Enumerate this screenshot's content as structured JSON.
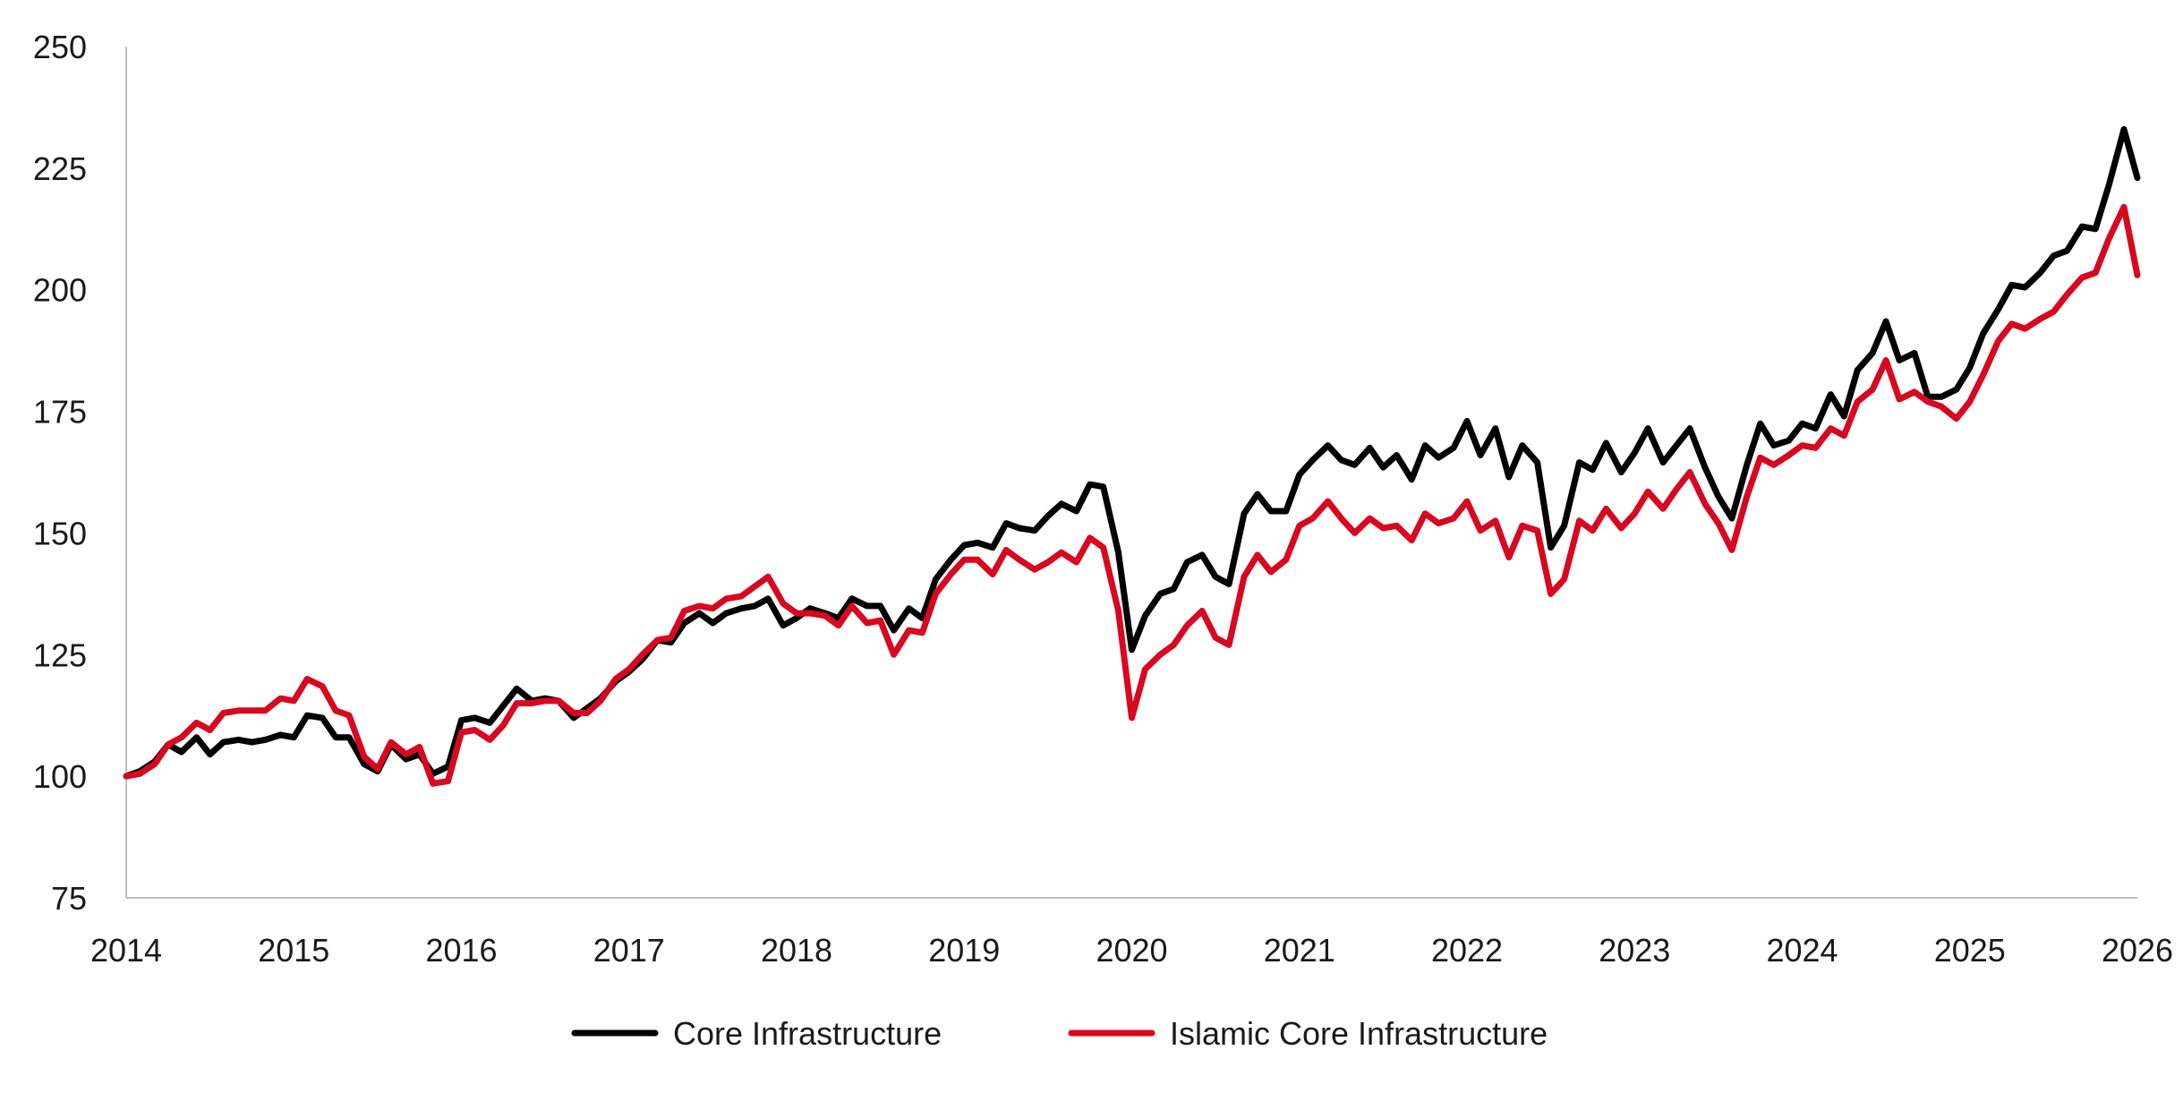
{
  "chart_data": {
    "type": "line",
    "title": "",
    "xlabel": "",
    "ylabel": "",
    "xlim": [
      2014,
      2026
    ],
    "ylim": [
      75,
      250
    ],
    "y_ticks": [
      "75",
      "100",
      "125",
      "150",
      "175",
      "200",
      "225",
      "250"
    ],
    "x_ticks": [
      "2014",
      "2015",
      "2016",
      "2017",
      "2018",
      "2019",
      "2020",
      "2021",
      "2022",
      "2023",
      "2024",
      "2025",
      "2026"
    ],
    "grid": false,
    "legend_position": "bottom",
    "series": [
      {
        "name": "Core Infrastructure",
        "color": "#000000",
        "points": [
          [
            2014.0,
            100
          ],
          [
            2014.08,
            101
          ],
          [
            2014.17,
            103
          ],
          [
            2014.25,
            106.5
          ],
          [
            2014.33,
            105
          ],
          [
            2014.42,
            108
          ],
          [
            2014.5,
            104.5
          ],
          [
            2014.58,
            107
          ],
          [
            2014.67,
            107.5
          ],
          [
            2014.75,
            107
          ],
          [
            2014.83,
            107.5
          ],
          [
            2014.92,
            108.5
          ],
          [
            2015.0,
            108
          ],
          [
            2015.08,
            112.5
          ],
          [
            2015.17,
            112
          ],
          [
            2015.25,
            108
          ],
          [
            2015.33,
            108
          ],
          [
            2015.42,
            102.5
          ],
          [
            2015.5,
            101
          ],
          [
            2015.58,
            106.5
          ],
          [
            2015.67,
            103.5
          ],
          [
            2015.75,
            104.5
          ],
          [
            2015.83,
            100.5
          ],
          [
            2015.92,
            102
          ],
          [
            2016.0,
            111.5
          ],
          [
            2016.08,
            112
          ],
          [
            2016.17,
            111
          ],
          [
            2016.25,
            114.5
          ],
          [
            2016.33,
            118
          ],
          [
            2016.42,
            115.5
          ],
          [
            2016.5,
            116
          ],
          [
            2016.58,
            115.5
          ],
          [
            2016.67,
            112
          ],
          [
            2016.75,
            114
          ],
          [
            2016.83,
            116
          ],
          [
            2016.92,
            119.5
          ],
          [
            2017.0,
            121.5
          ],
          [
            2017.08,
            124
          ],
          [
            2017.17,
            128
          ],
          [
            2017.25,
            127.5
          ],
          [
            2017.33,
            131.5
          ],
          [
            2017.42,
            133.5
          ],
          [
            2017.5,
            131.5
          ],
          [
            2017.58,
            133.5
          ],
          [
            2017.67,
            134.5
          ],
          [
            2017.75,
            135
          ],
          [
            2017.83,
            136.5
          ],
          [
            2017.92,
            131
          ],
          [
            2018.0,
            132.5
          ],
          [
            2018.08,
            134.5
          ],
          [
            2018.17,
            133.5
          ],
          [
            2018.25,
            132.5
          ],
          [
            2018.33,
            136.5
          ],
          [
            2018.42,
            135
          ],
          [
            2018.5,
            135
          ],
          [
            2018.58,
            130
          ],
          [
            2018.67,
            134.5
          ],
          [
            2018.75,
            132.5
          ],
          [
            2018.83,
            140.5
          ],
          [
            2018.92,
            144.5
          ],
          [
            2019.0,
            147.5
          ],
          [
            2019.08,
            148
          ],
          [
            2019.17,
            147
          ],
          [
            2019.25,
            152
          ],
          [
            2019.33,
            151
          ],
          [
            2019.42,
            150.5
          ],
          [
            2019.5,
            153.5
          ],
          [
            2019.58,
            156
          ],
          [
            2019.67,
            154.5
          ],
          [
            2019.75,
            160
          ],
          [
            2019.83,
            159.5
          ],
          [
            2019.92,
            146
          ],
          [
            2020.0,
            126
          ],
          [
            2020.08,
            133
          ],
          [
            2020.17,
            137.5
          ],
          [
            2020.25,
            138.5
          ],
          [
            2020.33,
            144
          ],
          [
            2020.42,
            145.5
          ],
          [
            2020.5,
            141
          ],
          [
            2020.58,
            139.5
          ],
          [
            2020.67,
            154
          ],
          [
            2020.75,
            158
          ],
          [
            2020.83,
            154.5
          ],
          [
            2020.92,
            154.5
          ],
          [
            2021.0,
            162
          ],
          [
            2021.08,
            165
          ],
          [
            2021.17,
            168
          ],
          [
            2021.25,
            165
          ],
          [
            2021.33,
            164
          ],
          [
            2021.42,
            167.5
          ],
          [
            2021.5,
            163.5
          ],
          [
            2021.58,
            166
          ],
          [
            2021.67,
            161
          ],
          [
            2021.75,
            168
          ],
          [
            2021.83,
            165.5
          ],
          [
            2021.92,
            167.5
          ],
          [
            2022.0,
            173
          ],
          [
            2022.08,
            166
          ],
          [
            2022.17,
            171.5
          ],
          [
            2022.25,
            161.5
          ],
          [
            2022.33,
            168
          ],
          [
            2022.42,
            164.5
          ],
          [
            2022.5,
            147
          ],
          [
            2022.58,
            151.5
          ],
          [
            2022.67,
            164.5
          ],
          [
            2022.75,
            163
          ],
          [
            2022.83,
            168.5
          ],
          [
            2022.92,
            162.5
          ],
          [
            2023.0,
            166.5
          ],
          [
            2023.08,
            171.5
          ],
          [
            2023.17,
            164.5
          ],
          [
            2023.25,
            168
          ],
          [
            2023.33,
            171.5
          ],
          [
            2023.42,
            163.5
          ],
          [
            2023.5,
            157.5
          ],
          [
            2023.58,
            153
          ],
          [
            2023.67,
            164
          ],
          [
            2023.75,
            172.5
          ],
          [
            2023.83,
            168
          ],
          [
            2023.92,
            169
          ],
          [
            2024.0,
            172.5
          ],
          [
            2024.08,
            171.5
          ],
          [
            2024.17,
            178.5
          ],
          [
            2024.25,
            174
          ],
          [
            2024.33,
            183.5
          ],
          [
            2024.42,
            187
          ],
          [
            2024.5,
            193.5
          ],
          [
            2024.58,
            185.5
          ],
          [
            2024.67,
            187
          ],
          [
            2024.75,
            178
          ],
          [
            2024.83,
            178
          ],
          [
            2024.92,
            179.5
          ],
          [
            2025.0,
            184
          ],
          [
            2025.08,
            191
          ],
          [
            2025.17,
            196
          ],
          [
            2025.25,
            201
          ],
          [
            2025.33,
            200.5
          ],
          [
            2025.42,
            203.5
          ],
          [
            2025.5,
            207
          ],
          [
            2025.58,
            208
          ],
          [
            2025.67,
            213
          ],
          [
            2025.75,
            212.5
          ],
          [
            2025.83,
            221.5
          ],
          [
            2025.92,
            233
          ],
          [
            2026.0,
            223
          ]
        ]
      },
      {
        "name": "Islamic Core Infrastructure",
        "color": "#d7081f",
        "points": [
          [
            2014.0,
            100
          ],
          [
            2014.08,
            100.5
          ],
          [
            2014.17,
            102.5
          ],
          [
            2014.25,
            106.5
          ],
          [
            2014.33,
            108
          ],
          [
            2014.42,
            111
          ],
          [
            2014.5,
            109.5
          ],
          [
            2014.58,
            113
          ],
          [
            2014.67,
            113.5
          ],
          [
            2014.75,
            113.5
          ],
          [
            2014.83,
            113.5
          ],
          [
            2014.92,
            116
          ],
          [
            2015.0,
            115.5
          ],
          [
            2015.08,
            120
          ],
          [
            2015.17,
            118.5
          ],
          [
            2015.25,
            113.5
          ],
          [
            2015.33,
            112.5
          ],
          [
            2015.42,
            104
          ],
          [
            2015.5,
            101.5
          ],
          [
            2015.58,
            107
          ],
          [
            2015.67,
            104.5
          ],
          [
            2015.75,
            106
          ],
          [
            2015.83,
            98.5
          ],
          [
            2015.92,
            99
          ],
          [
            2016.0,
            109
          ],
          [
            2016.08,
            109.5
          ],
          [
            2016.17,
            107.5
          ],
          [
            2016.25,
            110.5
          ],
          [
            2016.33,
            115
          ],
          [
            2016.42,
            115
          ],
          [
            2016.5,
            115.5
          ],
          [
            2016.58,
            115.5
          ],
          [
            2016.67,
            113
          ],
          [
            2016.75,
            113
          ],
          [
            2016.83,
            115.5
          ],
          [
            2016.92,
            120
          ],
          [
            2017.0,
            122
          ],
          [
            2017.08,
            125
          ],
          [
            2017.17,
            128
          ],
          [
            2017.25,
            128.5
          ],
          [
            2017.33,
            134
          ],
          [
            2017.42,
            135
          ],
          [
            2017.5,
            134.5
          ],
          [
            2017.58,
            136.5
          ],
          [
            2017.67,
            137
          ],
          [
            2017.75,
            139
          ],
          [
            2017.83,
            141
          ],
          [
            2017.92,
            135.5
          ],
          [
            2018.0,
            133.5
          ],
          [
            2018.08,
            133.5
          ],
          [
            2018.17,
            133
          ],
          [
            2018.25,
            131
          ],
          [
            2018.33,
            135
          ],
          [
            2018.42,
            131.5
          ],
          [
            2018.5,
            132
          ],
          [
            2018.58,
            125
          ],
          [
            2018.67,
            130
          ],
          [
            2018.75,
            129.5
          ],
          [
            2018.83,
            137.5
          ],
          [
            2018.92,
            141.5
          ],
          [
            2019.0,
            144.5
          ],
          [
            2019.08,
            144.5
          ],
          [
            2019.17,
            141.5
          ],
          [
            2019.25,
            146.5
          ],
          [
            2019.33,
            144.5
          ],
          [
            2019.42,
            142.5
          ],
          [
            2019.5,
            144
          ],
          [
            2019.58,
            146
          ],
          [
            2019.67,
            144
          ],
          [
            2019.75,
            149
          ],
          [
            2019.83,
            147
          ],
          [
            2019.92,
            134
          ],
          [
            2020.0,
            112
          ],
          [
            2020.08,
            122
          ],
          [
            2020.17,
            125
          ],
          [
            2020.25,
            127
          ],
          [
            2020.33,
            131
          ],
          [
            2020.42,
            134
          ],
          [
            2020.5,
            128.5
          ],
          [
            2020.58,
            127
          ],
          [
            2020.67,
            141
          ],
          [
            2020.75,
            145.5
          ],
          [
            2020.83,
            142
          ],
          [
            2020.92,
            144.5
          ],
          [
            2021.0,
            151.5
          ],
          [
            2021.08,
            153
          ],
          [
            2021.17,
            156.5
          ],
          [
            2021.25,
            153
          ],
          [
            2021.33,
            150
          ],
          [
            2021.42,
            153
          ],
          [
            2021.5,
            151
          ],
          [
            2021.58,
            151.5
          ],
          [
            2021.67,
            148.5
          ],
          [
            2021.75,
            154
          ],
          [
            2021.83,
            152
          ],
          [
            2021.92,
            153
          ],
          [
            2022.0,
            156.5
          ],
          [
            2022.08,
            150.5
          ],
          [
            2022.17,
            152.5
          ],
          [
            2022.25,
            145
          ],
          [
            2022.33,
            151.5
          ],
          [
            2022.42,
            150.5
          ],
          [
            2022.5,
            137.5
          ],
          [
            2022.58,
            140.5
          ],
          [
            2022.67,
            152.5
          ],
          [
            2022.75,
            150.5
          ],
          [
            2022.83,
            155
          ],
          [
            2022.92,
            151
          ],
          [
            2023.0,
            154
          ],
          [
            2023.08,
            158.5
          ],
          [
            2023.17,
            155
          ],
          [
            2023.25,
            159
          ],
          [
            2023.33,
            162.5
          ],
          [
            2023.42,
            156
          ],
          [
            2023.5,
            152
          ],
          [
            2023.58,
            146.5
          ],
          [
            2023.67,
            157.5
          ],
          [
            2023.75,
            165.5
          ],
          [
            2023.83,
            164
          ],
          [
            2023.92,
            166
          ],
          [
            2024.0,
            168
          ],
          [
            2024.08,
            167.5
          ],
          [
            2024.17,
            171.5
          ],
          [
            2024.25,
            170
          ],
          [
            2024.33,
            177
          ],
          [
            2024.42,
            179.5
          ],
          [
            2024.5,
            185.5
          ],
          [
            2024.58,
            177.5
          ],
          [
            2024.67,
            179
          ],
          [
            2024.75,
            177
          ],
          [
            2024.83,
            176
          ],
          [
            2024.92,
            173.5
          ],
          [
            2025.0,
            177
          ],
          [
            2025.08,
            182.5
          ],
          [
            2025.17,
            189.5
          ],
          [
            2025.25,
            193
          ],
          [
            2025.33,
            192
          ],
          [
            2025.42,
            194
          ],
          [
            2025.5,
            195.5
          ],
          [
            2025.58,
            199
          ],
          [
            2025.67,
            202.5
          ],
          [
            2025.75,
            203.5
          ],
          [
            2025.83,
            210.5
          ],
          [
            2025.92,
            217
          ],
          [
            2026.0,
            203
          ]
        ]
      }
    ]
  }
}
